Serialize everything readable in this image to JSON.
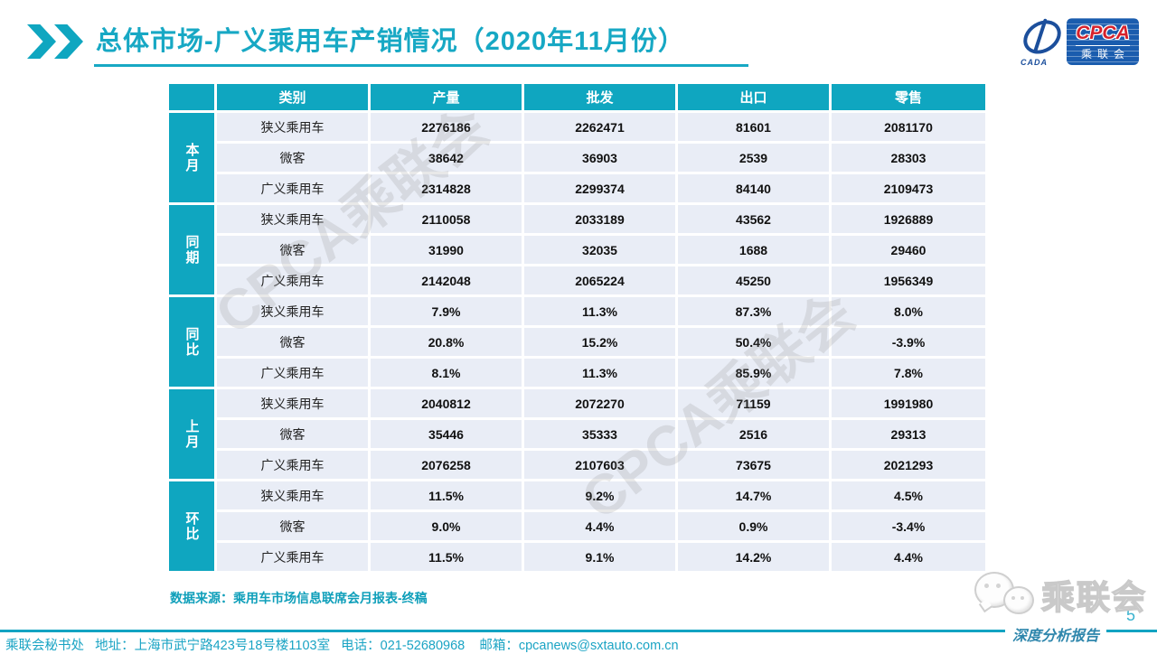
{
  "colors": {
    "teal": "#0fa6c0",
    "title_teal": "#17a8c4",
    "row_bg": "#e9edf6",
    "logo_blue": "#1a5cae",
    "logo_red": "#d6212b",
    "footer_text": "#1ba4c4"
  },
  "header": {
    "title": "总体市场-广义乘用车产销情况（2020年11月份）",
    "logo": {
      "cpca": "CPCA",
      "club": "乘联会",
      "cada": "CADA"
    }
  },
  "table": {
    "columns": [
      "类别",
      "产量",
      "批发",
      "出口",
      "零售"
    ],
    "groups": [
      {
        "label": "本月",
        "rows": [
          {
            "category": "狭义乘用车",
            "values": [
              "2276186",
              "2262471",
              "81601",
              "2081170"
            ]
          },
          {
            "category": "微客",
            "values": [
              "38642",
              "36903",
              "2539",
              "28303"
            ]
          },
          {
            "category": "广义乘用车",
            "values": [
              "2314828",
              "2299374",
              "84140",
              "2109473"
            ]
          }
        ]
      },
      {
        "label": "同期",
        "rows": [
          {
            "category": "狭义乘用车",
            "values": [
              "2110058",
              "2033189",
              "43562",
              "1926889"
            ]
          },
          {
            "category": "微客",
            "values": [
              "31990",
              "32035",
              "1688",
              "29460"
            ]
          },
          {
            "category": "广义乘用车",
            "values": [
              "2142048",
              "2065224",
              "45250",
              "1956349"
            ]
          }
        ]
      },
      {
        "label": "同比",
        "rows": [
          {
            "category": "狭义乘用车",
            "values": [
              "7.9%",
              "11.3%",
              "87.3%",
              "8.0%"
            ]
          },
          {
            "category": "微客",
            "values": [
              "20.8%",
              "15.2%",
              "50.4%",
              "-3.9%"
            ]
          },
          {
            "category": "广义乘用车",
            "values": [
              "8.1%",
              "11.3%",
              "85.9%",
              "7.8%"
            ]
          }
        ]
      },
      {
        "label": "上月",
        "rows": [
          {
            "category": "狭义乘用车",
            "values": [
              "2040812",
              "2072270",
              "71159",
              "1991980"
            ]
          },
          {
            "category": "微客",
            "values": [
              "35446",
              "35333",
              "2516",
              "29313"
            ]
          },
          {
            "category": "广义乘用车",
            "values": [
              "2076258",
              "2107603",
              "73675",
              "2021293"
            ]
          }
        ]
      },
      {
        "label": "环比",
        "rows": [
          {
            "category": "狭义乘用车",
            "values": [
              "11.5%",
              "9.2%",
              "14.7%",
              "4.5%"
            ]
          },
          {
            "category": "微客",
            "values": [
              "9.0%",
              "4.4%",
              "0.9%",
              "-3.4%"
            ]
          },
          {
            "category": "广义乘用车",
            "values": [
              "11.5%",
              "9.1%",
              "14.2%",
              "4.4%"
            ]
          }
        ]
      }
    ]
  },
  "watermark": {
    "text": "CPCA乘联会"
  },
  "source_note": "数据来源：乘用车市场信息联席会月报表-终稿",
  "footer": {
    "contact": "乘联会秘书处   地址：上海市武宁路423号18号楼1103室   电话：021-52680968    邮箱：cpcanews@sxtauto.com.cn",
    "page_number": "5",
    "report_label": "深度分析报告",
    "wechat_label": "乘联会"
  }
}
